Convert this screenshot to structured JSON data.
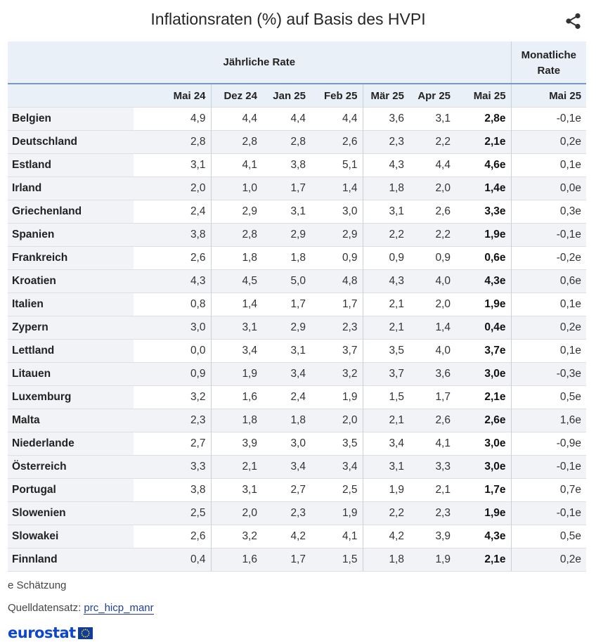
{
  "title": "Inflationsraten (%) auf Basis des HVPI",
  "share_icon": "share-icon",
  "header": {
    "group_annual": "Jährliche Rate",
    "group_monthly_line1": "Monatliche",
    "group_monthly_line2": "Rate",
    "columns": [
      "Mai 24",
      "Dez 24",
      "Jan 25",
      "Feb 25",
      "Mär 25",
      "Apr 25",
      "Mai 25",
      "Mai 25"
    ]
  },
  "chart_data": {
    "type": "table",
    "title": "Inflationsraten (%) auf Basis des HVPI",
    "column_groups": [
      {
        "label": "Jährliche Rate",
        "columns": [
          "Mai 24",
          "Dez 24",
          "Jan 25",
          "Feb 25",
          "Mär 25",
          "Apr 25",
          "Mai 25"
        ]
      },
      {
        "label": "Monatliche Rate",
        "columns": [
          "Mai 25"
        ]
      }
    ],
    "rows": [
      {
        "country": "Belgien",
        "values": [
          "4,9",
          "4,4",
          "4,4",
          "4,4",
          "3,6",
          "3,1",
          "2,8e",
          "-0,1e"
        ]
      },
      {
        "country": "Deutschland",
        "values": [
          "2,8",
          "2,8",
          "2,8",
          "2,6",
          "2,3",
          "2,2",
          "2,1e",
          "0,2e"
        ]
      },
      {
        "country": "Estland",
        "values": [
          "3,1",
          "4,1",
          "3,8",
          "5,1",
          "4,3",
          "4,4",
          "4,6e",
          "0,1e"
        ]
      },
      {
        "country": "Irland",
        "values": [
          "2,0",
          "1,0",
          "1,7",
          "1,4",
          "1,8",
          "2,0",
          "1,4e",
          "0,0e"
        ]
      },
      {
        "country": "Griechenland",
        "values": [
          "2,4",
          "2,9",
          "3,1",
          "3,0",
          "3,1",
          "2,6",
          "3,3e",
          "0,3e"
        ]
      },
      {
        "country": "Spanien",
        "values": [
          "3,8",
          "2,8",
          "2,9",
          "2,9",
          "2,2",
          "2,2",
          "1,9e",
          "-0,1e"
        ]
      },
      {
        "country": "Frankreich",
        "values": [
          "2,6",
          "1,8",
          "1,8",
          "0,9",
          "0,9",
          "0,9",
          "0,6e",
          "-0,2e"
        ]
      },
      {
        "country": "Kroatien",
        "values": [
          "4,3",
          "4,5",
          "5,0",
          "4,8",
          "4,3",
          "4,0",
          "4,3e",
          "0,6e"
        ]
      },
      {
        "country": "Italien",
        "values": [
          "0,8",
          "1,4",
          "1,7",
          "1,7",
          "2,1",
          "2,0",
          "1,9e",
          "0,1e"
        ]
      },
      {
        "country": "Zypern",
        "values": [
          "3,0",
          "3,1",
          "2,9",
          "2,3",
          "2,1",
          "1,4",
          "0,4e",
          "0,2e"
        ]
      },
      {
        "country": "Lettland",
        "values": [
          "0,0",
          "3,4",
          "3,1",
          "3,7",
          "3,5",
          "4,0",
          "3,7e",
          "0,1e"
        ]
      },
      {
        "country": "Litauen",
        "values": [
          "0,9",
          "1,9",
          "3,4",
          "3,2",
          "3,7",
          "3,6",
          "3,0e",
          "-0,3e"
        ]
      },
      {
        "country": "Luxemburg",
        "values": [
          "3,2",
          "1,6",
          "2,4",
          "1,9",
          "1,5",
          "1,7",
          "2,1e",
          "0,5e"
        ]
      },
      {
        "country": "Malta",
        "values": [
          "2,3",
          "1,8",
          "1,8",
          "2,0",
          "2,1",
          "2,6",
          "2,6e",
          "1,6e"
        ]
      },
      {
        "country": "Niederlande",
        "values": [
          "2,7",
          "3,9",
          "3,0",
          "3,5",
          "3,4",
          "4,1",
          "3,0e",
          "-0,9e"
        ]
      },
      {
        "country": "Österreich",
        "values": [
          "3,3",
          "2,1",
          "3,4",
          "3,4",
          "3,1",
          "3,3",
          "3,0e",
          "-0,1e"
        ]
      },
      {
        "country": "Portugal",
        "values": [
          "3,8",
          "3,1",
          "2,7",
          "2,5",
          "1,9",
          "2,1",
          "1,7e",
          "0,7e"
        ]
      },
      {
        "country": "Slowenien",
        "values": [
          "2,5",
          "2,0",
          "2,3",
          "1,9",
          "2,2",
          "2,3",
          "1,9e",
          "-0,1e"
        ]
      },
      {
        "country": "Slowakei",
        "values": [
          "2,6",
          "3,2",
          "4,2",
          "4,1",
          "4,2",
          "3,9",
          "4,3e",
          "0,5e"
        ]
      },
      {
        "country": "Finnland",
        "values": [
          "0,4",
          "1,6",
          "1,7",
          "1,5",
          "1,8",
          "1,9",
          "2,1e",
          "0,2e"
        ]
      }
    ]
  },
  "footer": {
    "note": "e Schätzung",
    "source_label": "Quelldatensatz: ",
    "source_link": "prc_hicp_manr",
    "logo_text": "eurostat",
    "logo_icon": "eu-flag-icon"
  },
  "colors": {
    "header_bg": "#eaf0f8",
    "row_alt_bg": "#f1f3f6",
    "header_rule": "#7a96c7",
    "link": "#1f3e93",
    "logo_blue": "#0e47cb",
    "flag_blue": "#0f3d9e",
    "flag_star": "#ffd617"
  }
}
